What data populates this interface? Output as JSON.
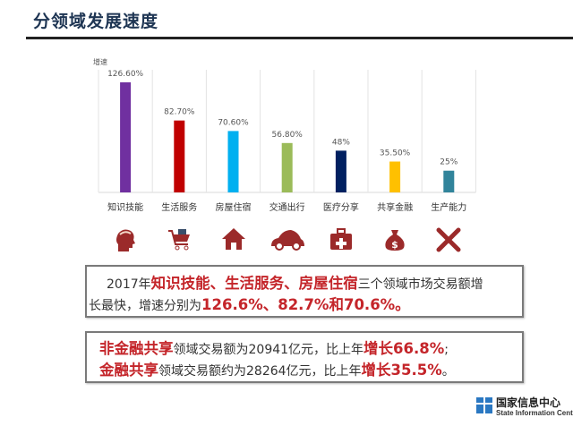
{
  "title": "分领域发展速度",
  "chart_data": {
    "type": "bar",
    "ylabel": "增速",
    "categories": [
      "知识技能",
      "生活服务",
      "房屋住宿",
      "交通出行",
      "医疗分享",
      "共享金融",
      "生产能力"
    ],
    "values": [
      126.6,
      82.7,
      70.6,
      56.8,
      48,
      35.5,
      25
    ],
    "data_labels": [
      "126.60%",
      "82.70%",
      "70.60%",
      "56.80%",
      "48%",
      "35.50%",
      "25%"
    ],
    "colors": [
      "#7030a0",
      "#c00000",
      "#00b0f0",
      "#9bbb59",
      "#002060",
      "#ffc000",
      "#31849b"
    ],
    "ylim": [
      0,
      140
    ],
    "grid": "vertical separators",
    "legend": "none"
  },
  "icons": [
    "head-brain-icon",
    "shopping-cart-icon",
    "house-icon",
    "car-icon",
    "medical-kit-icon",
    "money-bag-icon",
    "tools-icon"
  ],
  "icon_color": "#9b2a2a",
  "box1": {
    "l1": [
      "2017年",
      "知识技能、生活服务、房屋住宿",
      "三个领域市场交易额增"
    ],
    "l2": [
      "长最快，增速分别为",
      "126.6%、82.7%和70.6%。"
    ]
  },
  "box2": {
    "l1": [
      "非金融共享",
      "领域交易额为20941亿元，比上年",
      "增长66.8%",
      ";"
    ],
    "l2": [
      "金融共享",
      "领域交易额约为28264亿元，比上年",
      "增长35.5%",
      "。"
    ]
  },
  "logo": {
    "cn": "国家信息中心",
    "en": "State Information Center"
  }
}
